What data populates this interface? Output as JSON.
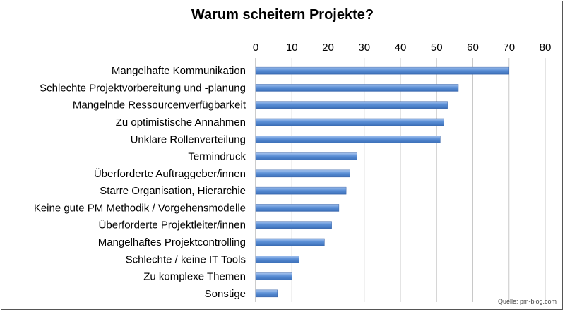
{
  "chart_data": {
    "type": "bar",
    "orientation": "horizontal",
    "title": "Warum scheitern Projekte?",
    "source": "Quelle: pm-blog.com",
    "xlim": [
      0,
      80
    ],
    "xticks": [
      0,
      10,
      20,
      30,
      40,
      50,
      60,
      70,
      80
    ],
    "axis_position": "top",
    "grid": true,
    "bar_color": "#5b8fd6",
    "categories": [
      "Mangelhafte Kommunikation",
      "Schlechte Projektvorbereitung und -planung",
      "Mangelnde Ressourcenverfügbarkeit",
      "Zu optimistische Annahmen",
      "Unklare Rollenverteilung",
      "Termindruck",
      "Überforderte Auftraggeber/innen",
      "Starre Organisation, Hierarchie",
      "Keine gute PM Methodik / Vorgehensmodelle",
      "Überforderte Projektleiter/innen",
      "Mangelhaftes Projektcontrolling",
      "Schlechte / keine IT Tools",
      "Zu komplexe Themen",
      "Sonstige"
    ],
    "values": [
      70,
      56,
      53,
      52,
      51,
      28,
      26,
      25,
      23,
      21,
      19,
      12,
      10,
      6
    ]
  }
}
